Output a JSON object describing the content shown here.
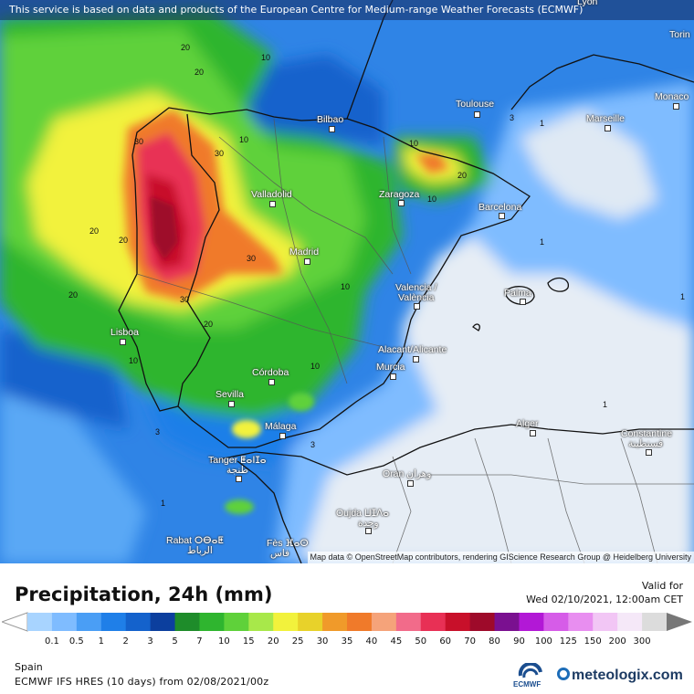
{
  "banner": "This service is based on data and products of the European Centre for Medium-range Weather Forecasts (ECMWF)",
  "attribution": "Map data © OpenStreetMap contributors, rendering GIScience Research Group @ Heidelberg University",
  "title": "Precipitation, 24h (mm)",
  "valid_label": "Valid for",
  "valid_time": "Wed 02/10/2021, 12:00am CET",
  "region": "Spain",
  "model": "ECMWF IFS HRES (10 days) from 02/08/2021/00z",
  "ecmwf_logo": "ECMWF",
  "brand": "meteologix.com",
  "cities": {
    "lyon": "Lyon",
    "torino": "Torin",
    "toulouse": "Toulouse",
    "monaco": "Monaco",
    "marseille": "Marseille",
    "bilbao": "Bilbao",
    "valladolid": "Valladolid",
    "zaragoza": "Zaragoza",
    "barcelona": "Barcelona",
    "madrid": "Madrid",
    "valencia1": "Valencia /",
    "valencia2": "València",
    "palma": "Palma",
    "lisboa": "Lisboa",
    "cordoba": "Córdoba",
    "alicante": "Alacant/Alicante",
    "murcia": "Murcia",
    "sevilla": "Sevilla",
    "malaga": "Málaga",
    "alger": "Alger",
    "constantine": "Constantine",
    "constantine_ar": "قسنطينة",
    "tanger": "Tanger ⵟⴰⵏⵊⴰ",
    "tanger_ar": "طنجة",
    "oran": "Oran وهران",
    "oujda": "Oujda ⵡⵊⴷⴰ",
    "oujda_ar": "وجدة",
    "rabat": "Rabat ⵔⴱⴰⵟ",
    "rabat_ar": "الرباط",
    "fes": "Fès ⴼⴰⵙ",
    "fes_ar": "فاس"
  },
  "legend": {
    "ticks": [
      "0.1",
      "0.5",
      "1",
      "2",
      "3",
      "5",
      "7",
      "10",
      "15",
      "20",
      "25",
      "30",
      "35",
      "40",
      "45",
      "50",
      "60",
      "70",
      "80",
      "90",
      "100",
      "125",
      "150",
      "200",
      "300"
    ],
    "colors": [
      "#a8d4ff",
      "#7fbcff",
      "#4a9ef5",
      "#1f7fe8",
      "#1462cc",
      "#0c3f9e",
      "#1e8c2a",
      "#2fb52f",
      "#5fd13a",
      "#a8e84a",
      "#f2f23c",
      "#e8d22a",
      "#f09a2a",
      "#f07a2a",
      "#f5a37a",
      "#f26b8a",
      "#e83055",
      "#c8102a",
      "#9e0a2a",
      "#7a1090",
      "#b218d6",
      "#d65ce8",
      "#e88ef0",
      "#f2c6f5",
      "#f5e8f8",
      "#dcdcdc"
    ]
  }
}
